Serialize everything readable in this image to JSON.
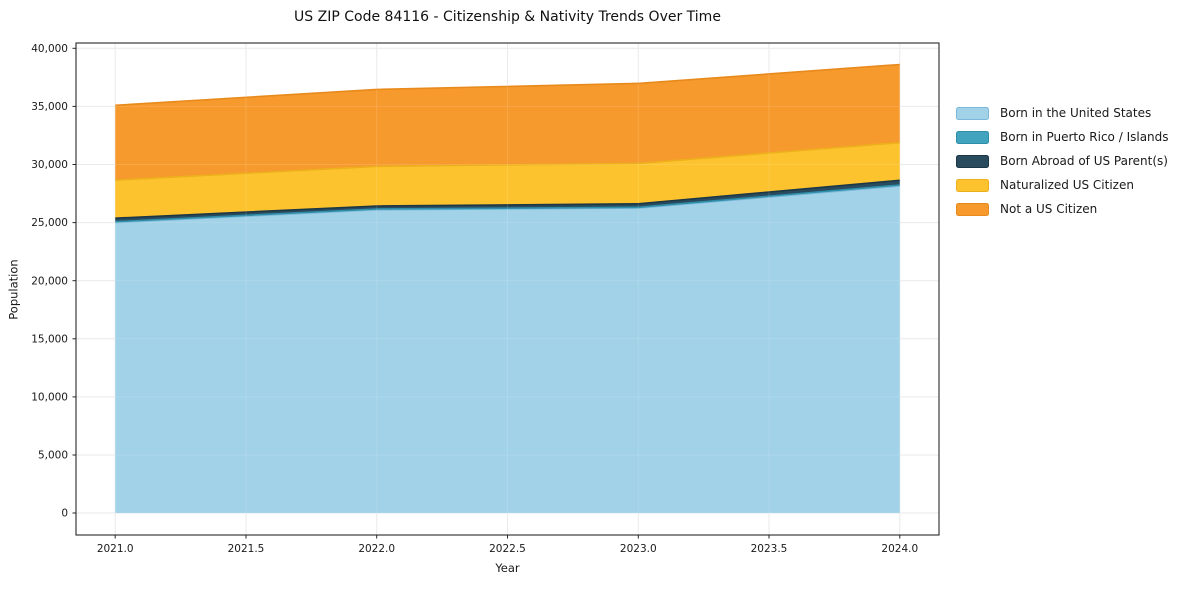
{
  "title": "US ZIP Code 84116 - Citizenship & Nativity Trends Over Time",
  "chart_data": {
    "type": "area",
    "stacked": true,
    "title": "US ZIP Code 84116 - Citizenship & Nativity Trends Over Time",
    "xlabel": "Year",
    "ylabel": "Population",
    "x": [
      2021,
      2022,
      2023,
      2024
    ],
    "series": [
      {
        "name": "Born in the United States",
        "values": [
          25000,
          26100,
          26250,
          28150
        ],
        "color": "#a2d2e8",
        "edge": "#7bb8d9"
      },
      {
        "name": "Born in Puerto Rico / Islands",
        "values": [
          80,
          70,
          70,
          90
        ],
        "color": "#41a3bd",
        "edge": "#2f8fa9"
      },
      {
        "name": "Born Abroad of US Parent(s)",
        "values": [
          300,
          260,
          300,
          400
        ],
        "color": "#2a4a5e",
        "edge": "#1c3847"
      },
      {
        "name": "Naturalized US Citizen",
        "values": [
          3270,
          3410,
          3480,
          3240
        ],
        "color": "#fdc32e",
        "edge": "#edb01c"
      },
      {
        "name": "Not a US Citizen",
        "values": [
          6450,
          6630,
          6880,
          6730
        ],
        "color": "#f79a2e",
        "edge": "#e8891b"
      }
    ],
    "stack_totals": [
      35100,
      36470,
      36980,
      38610
    ],
    "xticks": [
      2021.0,
      2021.5,
      2022.0,
      2022.5,
      2023.0,
      2023.5,
      2024.0
    ],
    "yticks": [
      0,
      5000,
      10000,
      15000,
      20000,
      25000,
      30000,
      35000,
      40000
    ],
    "xlim": [
      2020.85,
      2024.15
    ],
    "ylim": [
      -1890,
      40460
    ],
    "grid": true,
    "legend_position": "right-outside",
    "colors": {
      "grid": "#e7e7e7",
      "spine": "#282828",
      "tick": "#262626",
      "tick_label": "#1a1a1a",
      "background": "#ffffff"
    }
  }
}
